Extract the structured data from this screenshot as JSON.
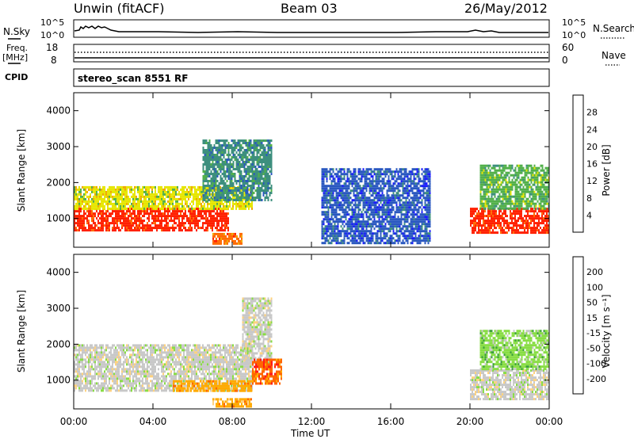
{
  "header": {
    "title": "Unwin (fitACF)",
    "beam": "Beam 03",
    "date": "26/May/2012"
  },
  "status": {
    "nsky_label": "N.Sky",
    "nsky_ticks": [
      "10^5",
      "10^0"
    ],
    "nsearch_label": "N.Search",
    "nsearch_ticks": [
      "10^5",
      "10^0"
    ],
    "freq_label": "Freq.",
    "freq_unit": "[MHz]",
    "freq_ticks": [
      "18",
      "8"
    ],
    "nave_label": "Nave",
    "nave_ticks": [
      "60",
      "0"
    ],
    "cpid_label": "CPID",
    "cpid_value": "stereo_scan 8551 RF"
  },
  "chart_data": [
    {
      "type": "heatmap",
      "name": "power",
      "ylabel": "Slant Range [km]",
      "yticks": [
        "1000",
        "2000",
        "3000",
        "4000"
      ],
      "ylim": [
        200,
        4500
      ],
      "xlim_hours": [
        0,
        24
      ],
      "colorbar_label": "Power [dB]",
      "colorbar_ticks": [
        "4",
        "8",
        "12",
        "16",
        "20",
        "24",
        "28"
      ],
      "colors": [
        "#1a1aff",
        "#2a58c0",
        "#3d8f7e",
        "#52b04a",
        "#e6e600",
        "#f0a800",
        "#ff6a00",
        "#ff2000"
      ],
      "regions": [
        {
          "t0": 0.0,
          "t1": 7.8,
          "r0": 700,
          "r1": 1300,
          "level": 7
        },
        {
          "t0": 0.0,
          "t1": 9.0,
          "r0": 1300,
          "r1": 1900,
          "level": 4
        },
        {
          "t0": 6.5,
          "t1": 10.0,
          "r0": 1500,
          "r1": 3200,
          "level": 2
        },
        {
          "t0": 7.0,
          "t1": 8.5,
          "r0": 300,
          "r1": 600,
          "level": 6
        },
        {
          "t0": 12.5,
          "t1": 18.0,
          "r0": 300,
          "r1": 2400,
          "level": 1
        },
        {
          "t0": 20.0,
          "t1": 24.0,
          "r0": 600,
          "r1": 1300,
          "level": 7
        },
        {
          "t0": 20.5,
          "t1": 24.0,
          "r0": 1300,
          "r1": 2500,
          "level": 3
        }
      ]
    },
    {
      "type": "heatmap",
      "name": "velocity",
      "ylabel": "Slant Range [km]",
      "yticks": [
        "1000",
        "2000",
        "3000",
        "4000"
      ],
      "ylim": [
        200,
        4500
      ],
      "xticks": [
        "00:00",
        "04:00",
        "08:00",
        "12:00",
        "16:00",
        "20:00",
        "00:00"
      ],
      "xlabel": "Time UT",
      "colorbar_label": "Velocity [m s⁻¹]",
      "colorbar_ticks": [
        "-200",
        "-100",
        "-50",
        "-15",
        "15",
        "50",
        "100",
        "200"
      ],
      "colors": [
        "#ff1a1a",
        "#ff6600",
        "#ffaa00",
        "#ffd27f",
        "#c8c8c8",
        "#88dd44",
        "#3ca03c",
        "#2a7a6a",
        "#1a1aff"
      ],
      "regions": [
        {
          "t0": 0.0,
          "t1": 9.0,
          "r0": 700,
          "r1": 2000,
          "level": 4
        },
        {
          "t0": 5.0,
          "t1": 9.0,
          "r0": 700,
          "r1": 1000,
          "level": 2
        },
        {
          "t0": 7.0,
          "t1": 9.0,
          "r0": 300,
          "r1": 500,
          "level": 2
        },
        {
          "t0": 8.5,
          "t1": 10.0,
          "r0": 1500,
          "r1": 3300,
          "level": 4
        },
        {
          "t0": 9.0,
          "t1": 10.5,
          "r0": 900,
          "r1": 1600,
          "level": 1
        },
        {
          "t0": 20.0,
          "t1": 24.0,
          "r0": 500,
          "r1": 1300,
          "level": 4
        },
        {
          "t0": 20.5,
          "t1": 24.0,
          "r0": 1300,
          "r1": 2400,
          "level": 5
        }
      ]
    }
  ]
}
